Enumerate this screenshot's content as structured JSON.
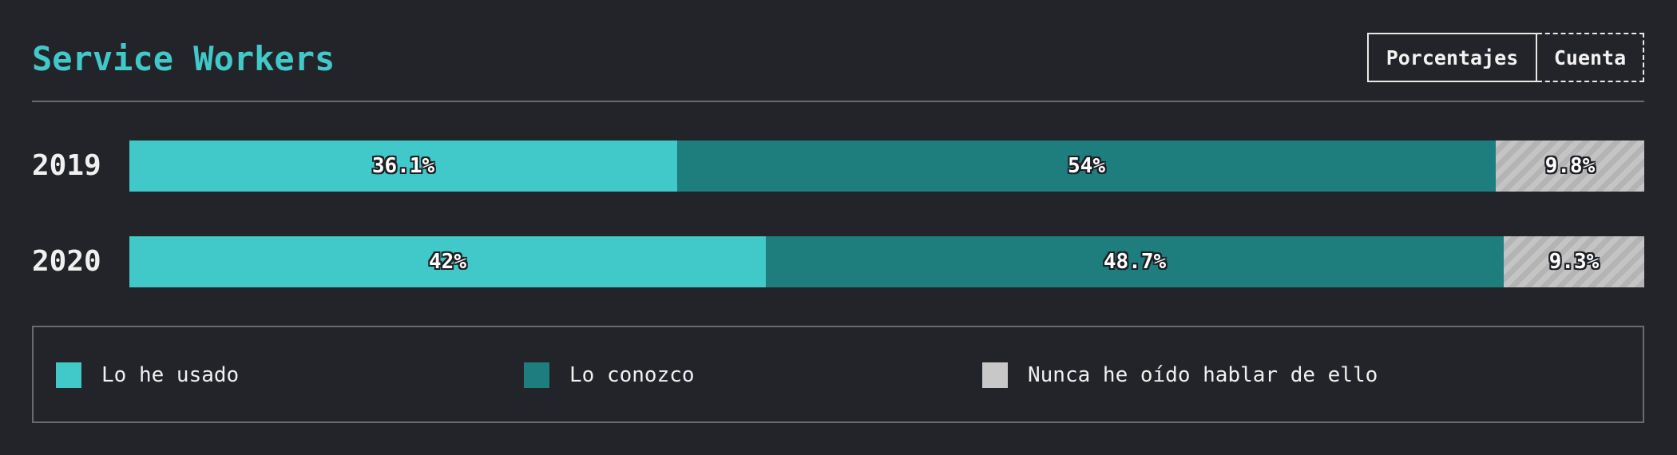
{
  "header": {
    "title": "Service Workers",
    "toggle": {
      "active_label": "Porcentajes",
      "inactive_label": "Cuenta"
    }
  },
  "chart_data": {
    "type": "bar",
    "orientation": "horizontal",
    "stacked": true,
    "normalized": true,
    "title": "Service Workers",
    "categories": [
      "2019",
      "2020"
    ],
    "series": [
      {
        "name": "Lo he usado",
        "values": [
          36.1,
          42
        ],
        "labels": [
          "36.1%",
          "42%"
        ],
        "color": "#41c8c8"
      },
      {
        "name": "Lo conozco",
        "values": [
          54,
          48.7
        ],
        "labels": [
          "54%",
          "48.7%"
        ],
        "color": "#1e7d7d"
      },
      {
        "name": "Nunca he oído hablar de ello",
        "values": [
          9.8,
          9.3
        ],
        "labels": [
          "9.8%",
          "9.3%"
        ],
        "color": "#c8c8c8",
        "pattern": "diagonal-stripes"
      }
    ],
    "xlim": [
      0,
      100
    ],
    "legend": "bottom"
  }
}
